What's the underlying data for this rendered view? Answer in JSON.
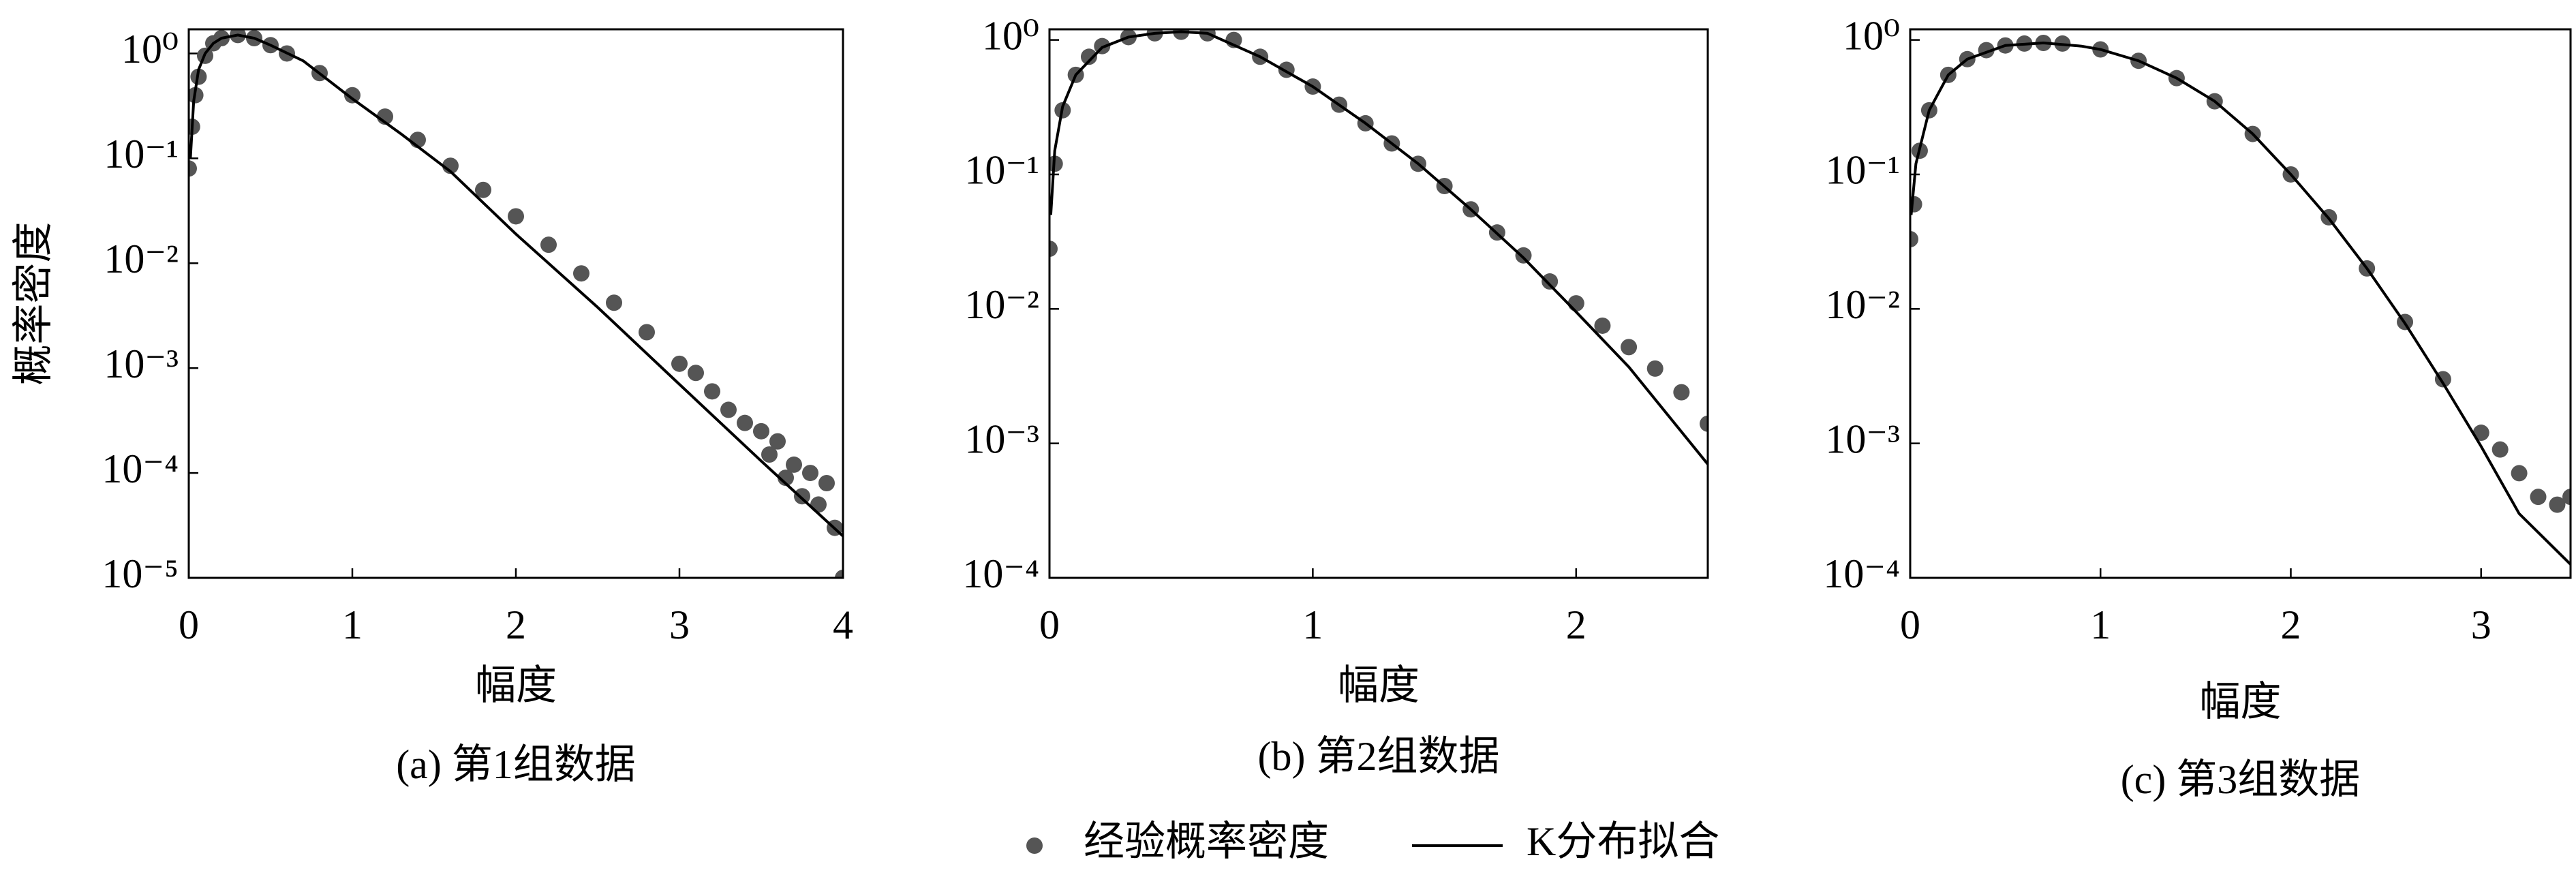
{
  "chart_data": [
    {
      "type": "line",
      "title": "(a) 第1组数据",
      "xlabel": "幅度",
      "ylabel": "概率密度",
      "yscale": "log",
      "xlim": [
        0,
        4
      ],
      "ylim": [
        1e-05,
        1.7
      ],
      "xticks": [
        0,
        1,
        2,
        3,
        4
      ],
      "yticks": [
        {
          "value": 1,
          "label": "10⁰"
        },
        {
          "value": 0.1,
          "label": "10⁻¹"
        },
        {
          "value": 0.01,
          "label": "10⁻²"
        },
        {
          "value": 0.001,
          "label": "10⁻³"
        },
        {
          "value": 0.0001,
          "label": "10⁻⁴"
        },
        {
          "value": 1e-05,
          "label": "10⁻⁵"
        }
      ],
      "series": [
        {
          "name": "经验概率密度",
          "type": "scatter",
          "color": "#555555",
          "x": [
            0,
            0.02,
            0.04,
            0.06,
            0.1,
            0.15,
            0.2,
            0.3,
            0.4,
            0.5,
            0.6,
            0.8,
            1.0,
            1.2,
            1.4,
            1.6,
            1.8,
            2.0,
            2.2,
            2.4,
            2.6,
            2.8,
            3.0,
            3.1,
            3.2,
            3.3,
            3.4,
            3.5,
            3.55,
            3.6,
            3.65,
            3.7,
            3.75,
            3.8,
            3.85,
            3.9,
            3.95,
            4.0
          ],
          "values": [
            0.08,
            0.2,
            0.4,
            0.6,
            0.95,
            1.25,
            1.4,
            1.5,
            1.4,
            1.2,
            1.0,
            0.65,
            0.4,
            0.25,
            0.15,
            0.085,
            0.05,
            0.028,
            0.015,
            0.008,
            0.0042,
            0.0022,
            0.0011,
            0.0009,
            0.0006,
            0.0004,
            0.0003,
            0.00025,
            0.00015,
            0.0002,
            9e-05,
            0.00012,
            6e-05,
            0.0001,
            5e-05,
            8e-05,
            3e-05,
            1e-05
          ]
        },
        {
          "name": "K分布拟合",
          "type": "line",
          "color": "#000000",
          "x": [
            0.01,
            0.03,
            0.06,
            0.1,
            0.15,
            0.2,
            0.3,
            0.4,
            0.5,
            0.7,
            1.0,
            1.3,
            1.6,
            2.0,
            2.5,
            3.0,
            3.5,
            4.0
          ],
          "values": [
            0.1,
            0.35,
            0.7,
            1.0,
            1.25,
            1.4,
            1.5,
            1.4,
            1.2,
            0.85,
            0.37,
            0.17,
            0.075,
            0.019,
            0.0038,
            0.0007,
            0.00013,
            2.5e-05
          ]
        }
      ]
    },
    {
      "type": "line",
      "title": "(b) 第2组数据",
      "xlabel": "幅度",
      "yscale": "log",
      "xlim": [
        0,
        2.5
      ],
      "ylim": [
        0.0001,
        1.2
      ],
      "xticks": [
        0,
        1,
        2
      ],
      "yticks": [
        {
          "value": 1,
          "label": "10⁰"
        },
        {
          "value": 0.1,
          "label": "10⁻¹"
        },
        {
          "value": 0.01,
          "label": "10⁻²"
        },
        {
          "value": 0.001,
          "label": "10⁻³"
        },
        {
          "value": 0.0001,
          "label": "10⁻⁴"
        }
      ],
      "series": [
        {
          "type": "scatter",
          "color": "#555555",
          "x": [
            0,
            0.02,
            0.05,
            0.1,
            0.15,
            0.2,
            0.3,
            0.4,
            0.5,
            0.6,
            0.7,
            0.8,
            0.9,
            1.0,
            1.1,
            1.2,
            1.3,
            1.4,
            1.5,
            1.6,
            1.7,
            1.8,
            1.9,
            2.0,
            2.1,
            2.2,
            2.3,
            2.4,
            2.5
          ],
          "values": [
            0.028,
            0.12,
            0.3,
            0.55,
            0.75,
            0.9,
            1.05,
            1.12,
            1.15,
            1.12,
            1.0,
            0.75,
            0.6,
            0.45,
            0.33,
            0.24,
            0.17,
            0.12,
            0.082,
            0.055,
            0.037,
            0.025,
            0.016,
            0.011,
            0.0075,
            0.0052,
            0.0036,
            0.0024,
            0.0014
          ]
        },
        {
          "type": "line",
          "color": "#000000",
          "x": [
            0.005,
            0.02,
            0.05,
            0.1,
            0.2,
            0.3,
            0.4,
            0.5,
            0.6,
            0.8,
            1.0,
            1.2,
            1.4,
            1.6,
            1.8,
            2.0,
            2.2,
            2.5
          ],
          "values": [
            0.05,
            0.15,
            0.32,
            0.55,
            0.88,
            1.05,
            1.12,
            1.15,
            1.12,
            0.75,
            0.45,
            0.24,
            0.12,
            0.055,
            0.024,
            0.0095,
            0.0037,
            0.0007
          ]
        }
      ]
    },
    {
      "type": "line",
      "title": "(c) 第3组数据",
      "xlabel": "幅度",
      "yscale": "log",
      "xlim": [
        0,
        3.47
      ],
      "ylim": [
        0.0001,
        1.2
      ],
      "xticks": [
        0,
        1,
        2,
        3
      ],
      "yticks": [
        {
          "value": 1,
          "label": "10⁰"
        },
        {
          "value": 0.1,
          "label": "10⁻¹"
        },
        {
          "value": 0.01,
          "label": "10⁻²"
        },
        {
          "value": 0.001,
          "label": "10⁻³"
        },
        {
          "value": 0.0001,
          "label": "10⁻⁴"
        }
      ],
      "series": [
        {
          "type": "scatter",
          "color": "#555555",
          "x": [
            0,
            0.02,
            0.05,
            0.1,
            0.2,
            0.3,
            0.4,
            0.5,
            0.6,
            0.7,
            0.8,
            1.0,
            1.2,
            1.4,
            1.6,
            1.8,
            2.0,
            2.2,
            2.4,
            2.6,
            2.8,
            3.0,
            3.1,
            3.2,
            3.3,
            3.4,
            3.47
          ],
          "values": [
            0.033,
            0.06,
            0.15,
            0.3,
            0.55,
            0.72,
            0.84,
            0.91,
            0.94,
            0.95,
            0.94,
            0.85,
            0.7,
            0.52,
            0.35,
            0.2,
            0.1,
            0.048,
            0.02,
            0.008,
            0.003,
            0.0012,
            0.0009,
            0.0006,
            0.0004,
            0.00035,
            0.0004
          ]
        },
        {
          "type": "line",
          "color": "#000000",
          "x": [
            0.005,
            0.03,
            0.1,
            0.2,
            0.3,
            0.5,
            0.7,
            0.9,
            1.0,
            1.2,
            1.4,
            1.6,
            1.8,
            2.0,
            2.2,
            2.4,
            2.6,
            2.8,
            3.0,
            3.2,
            3.47
          ],
          "values": [
            0.05,
            0.12,
            0.3,
            0.55,
            0.72,
            0.91,
            0.95,
            0.9,
            0.85,
            0.7,
            0.52,
            0.35,
            0.2,
            0.1,
            0.047,
            0.02,
            0.0078,
            0.0028,
            0.00095,
            0.0003,
            0.000126
          ]
        }
      ]
    }
  ]
}
